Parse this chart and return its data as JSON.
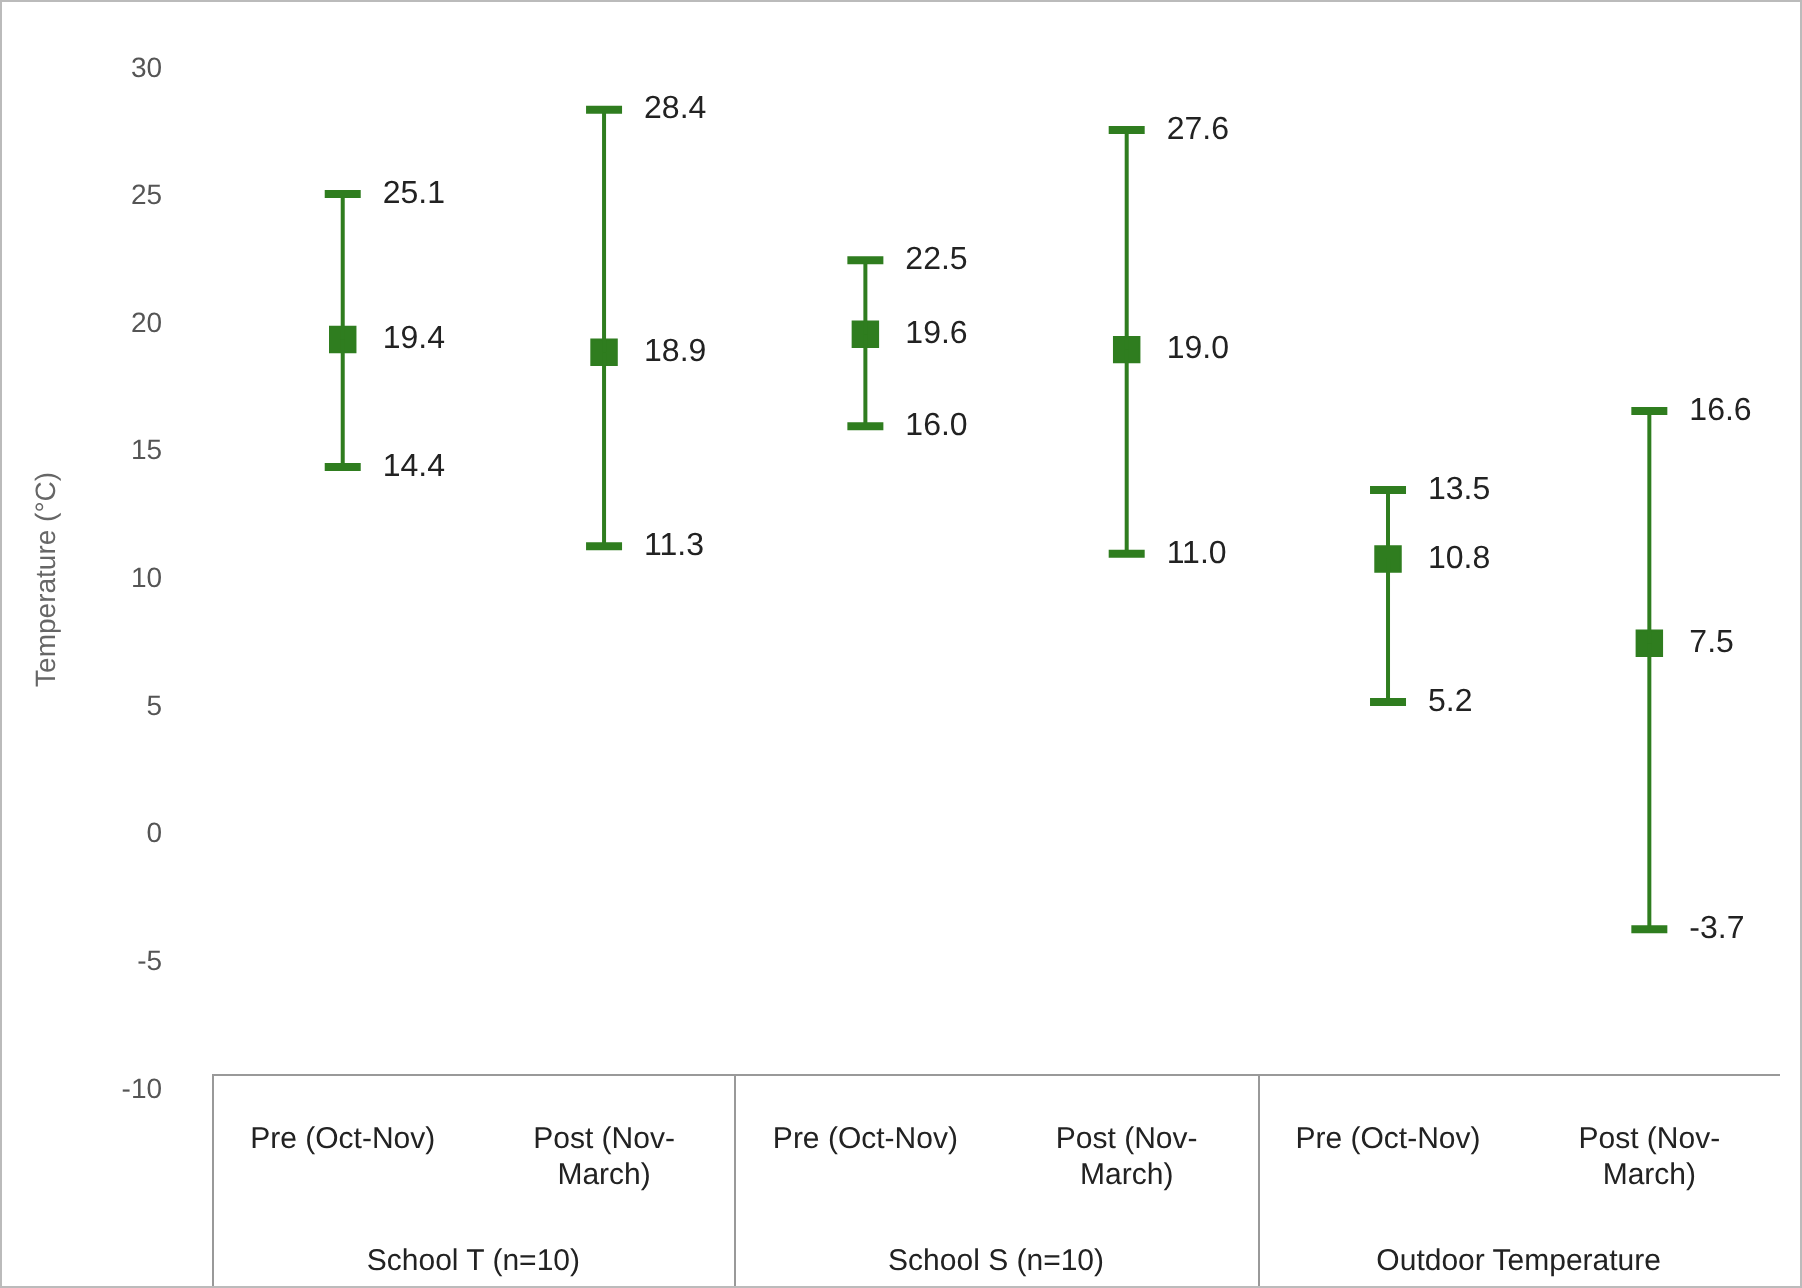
{
  "chart_data": {
    "type": "scatter",
    "ylabel": "Temperature (°C)",
    "categories": [
      "Pre (Oct-Nov)",
      "Post (Nov-March)",
      "Pre (Oct-Nov)",
      "Post (Nov-March)",
      "Pre (Oct-Nov)",
      "Post (Nov-March)"
    ],
    "values": [
      19.4,
      18.9,
      19.6,
      19.0,
      10.8,
      7.5
    ],
    "value_labels": [
      "19.4",
      "18.9",
      "19.6",
      "19.0",
      "10.8",
      "7.5"
    ],
    "errors": [
      [
        14.4,
        25.1
      ],
      [
        11.3,
        28.4
      ],
      [
        16.0,
        22.5
      ],
      [
        11.0,
        27.6
      ],
      [
        5.2,
        13.5
      ],
      [
        -3.7,
        16.6
      ]
    ],
    "color": "#2f7d1f",
    "marker": "square",
    "data_labels": true,
    "legend": false,
    "grid": false,
    "ylim": [
      -10,
      30
    ],
    "yticks": [
      -10,
      -5,
      0,
      5,
      10,
      15,
      20,
      25,
      30
    ],
    "annotations": [
      "School T (n=10)",
      "School S (n=10)",
      "Outdoor Temperature",
      "14.4",
      "25.1",
      "11.3",
      "28.4",
      "16.0",
      "22.5",
      "11.0",
      "27.6",
      "5.2",
      "13.5",
      "-3.7",
      "16.6"
    ]
  }
}
